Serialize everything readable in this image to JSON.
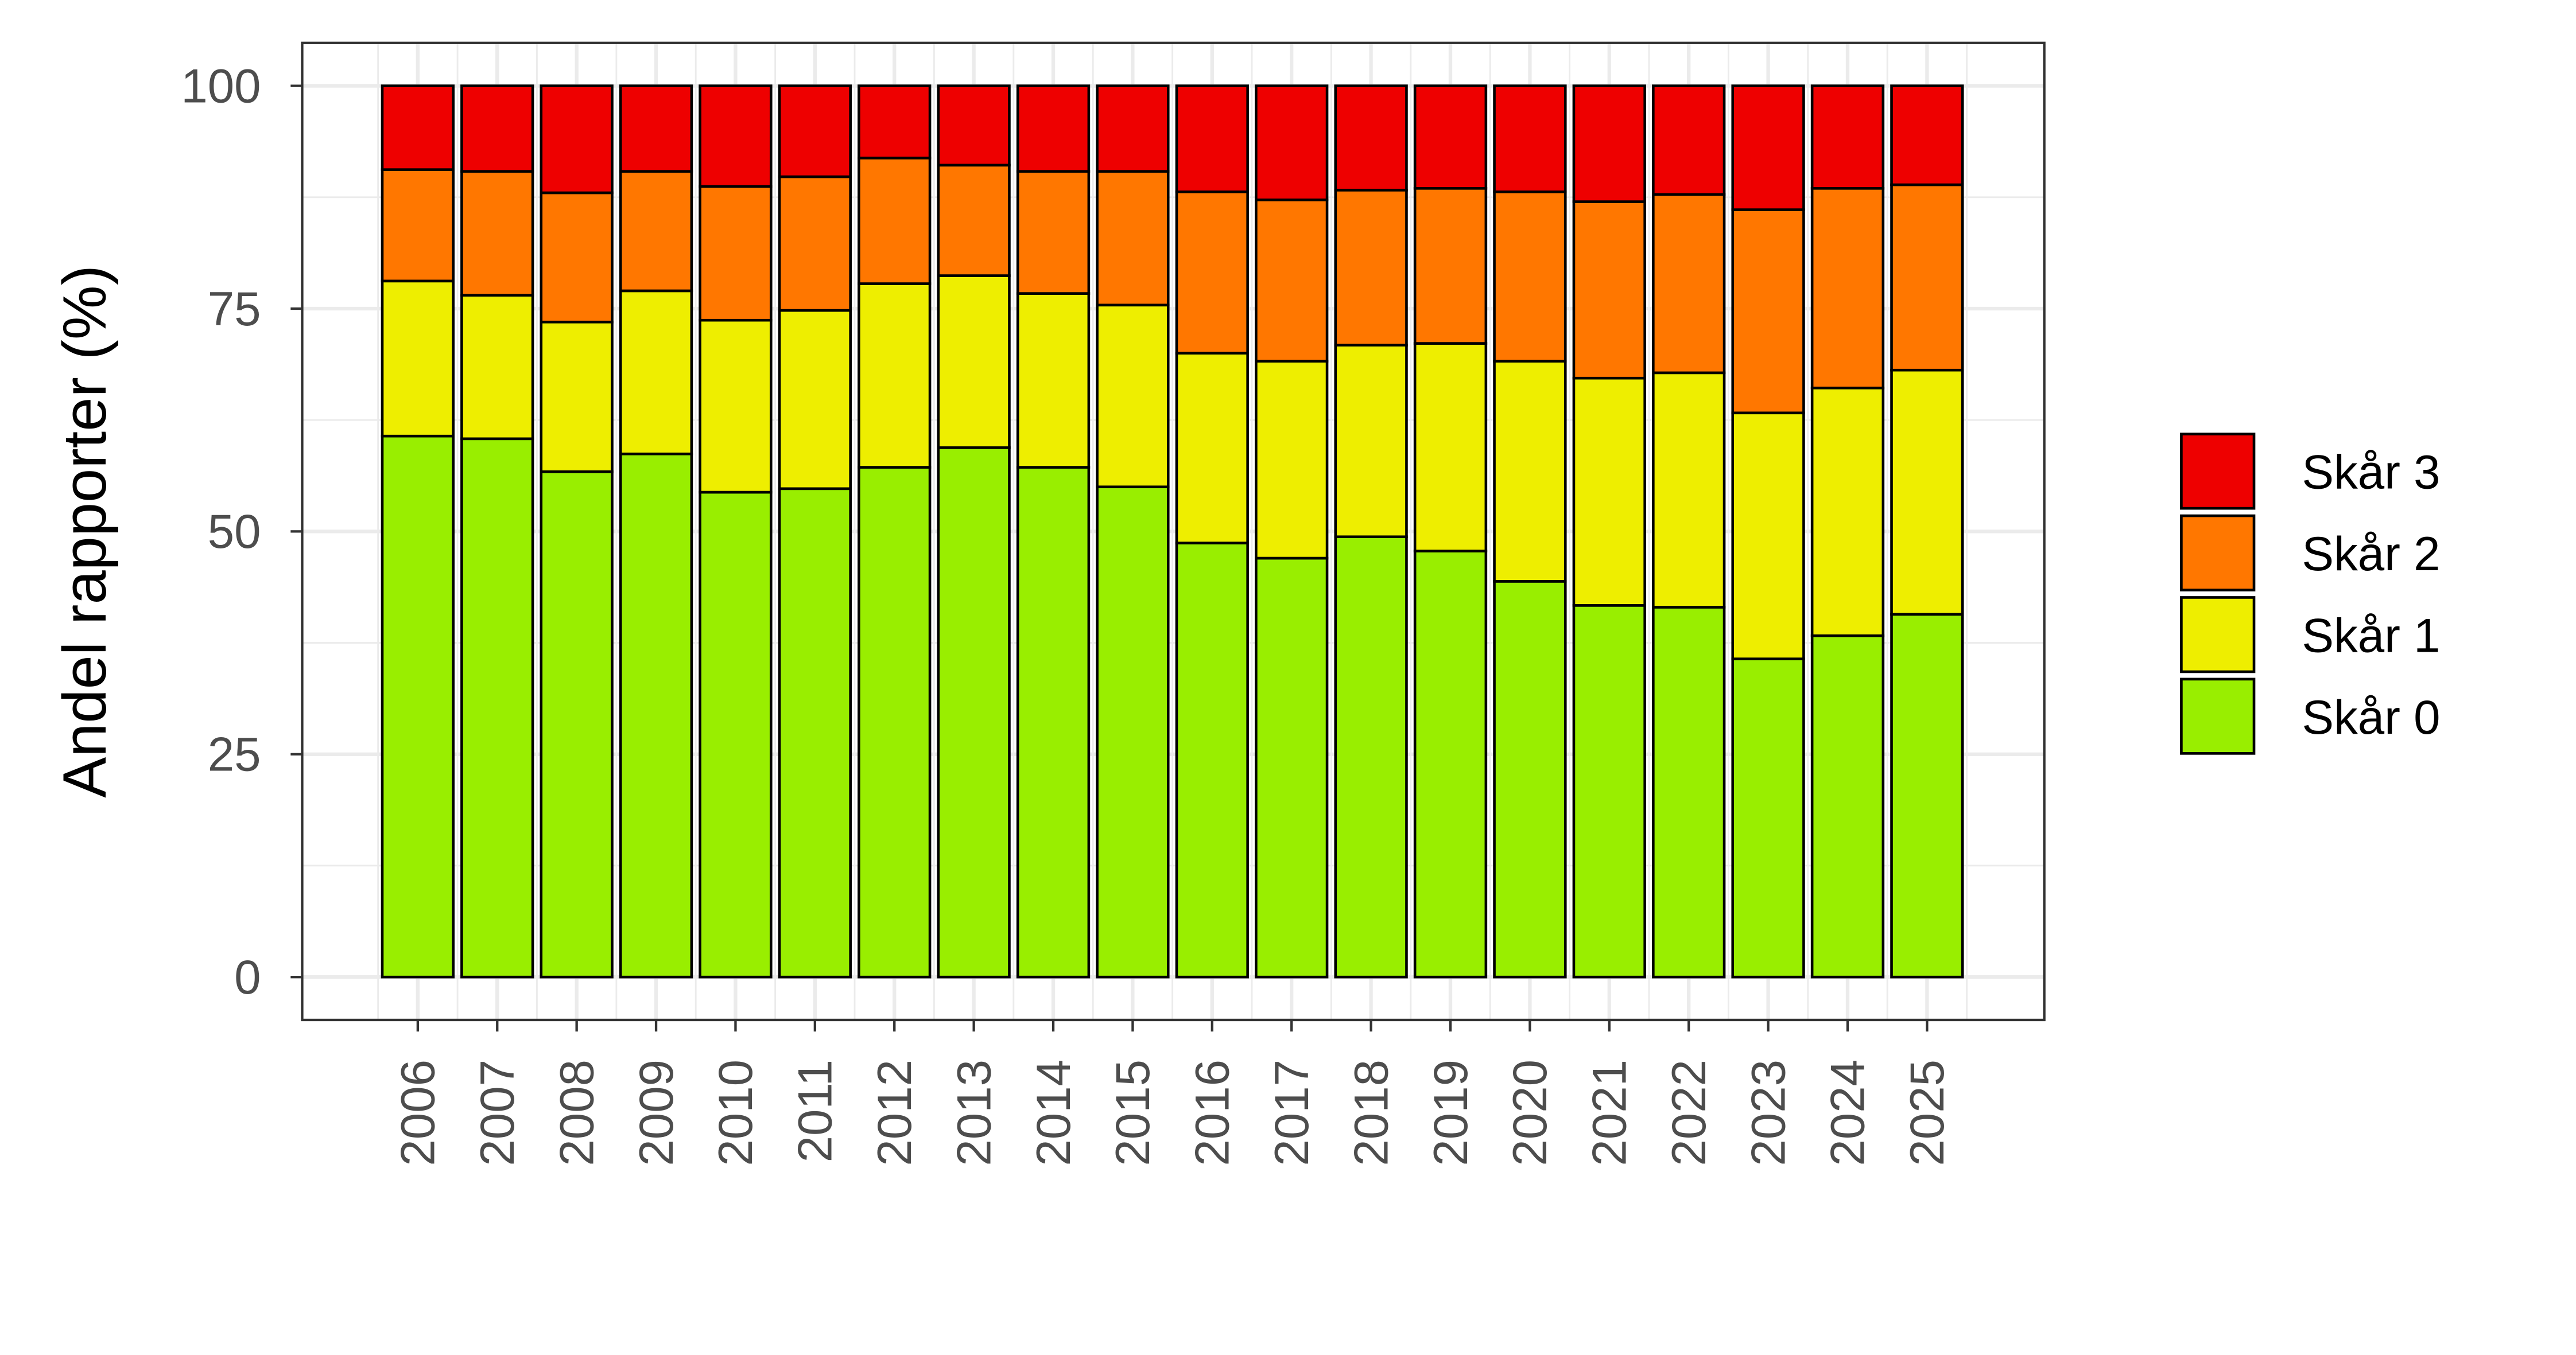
{
  "chart_data": {
    "type": "bar",
    "stacked": true,
    "title": "",
    "xlabel": "",
    "ylabel": "Andel rapporter (%)",
    "ylim": [
      0,
      100
    ],
    "yticks": [
      "0",
      "25",
      "50",
      "75",
      "100"
    ],
    "grid": true,
    "legend_position": "right",
    "categories": [
      "2006",
      "2007",
      "2008",
      "2009",
      "2010",
      "2011",
      "2012",
      "2013",
      "2014",
      "2015",
      "2016",
      "2017",
      "2018",
      "2019",
      "2020",
      "2021",
      "2022",
      "2023",
      "2024",
      "2025"
    ],
    "series": [
      {
        "name": "Skår 0",
        "color": "#99EE00",
        "values": [
          60.7,
          60.4,
          56.7,
          58.7,
          54.4,
          54.8,
          57.2,
          59.4,
          57.2,
          55.0,
          48.7,
          47.0,
          49.4,
          47.8,
          44.4,
          41.7,
          41.5,
          35.7,
          38.3,
          40.7
        ]
      },
      {
        "name": "Skår 1",
        "color": "#EEEE00",
        "values": [
          17.4,
          16.1,
          16.8,
          18.3,
          19.3,
          20.0,
          20.6,
          19.3,
          19.5,
          20.4,
          21.3,
          22.1,
          21.5,
          23.3,
          24.7,
          25.5,
          26.3,
          27.6,
          27.8,
          27.4
        ]
      },
      {
        "name": "Skår 2",
        "color": "#FF7700",
        "values": [
          12.5,
          13.9,
          14.5,
          13.4,
          15.0,
          15.0,
          14.1,
          12.4,
          13.7,
          15.0,
          18.1,
          18.1,
          17.4,
          17.4,
          19.0,
          19.8,
          20.0,
          22.8,
          22.4,
          20.8
        ]
      },
      {
        "name": "Skår 3",
        "color": "#EE0000",
        "values": [
          9.4,
          9.6,
          12.0,
          9.6,
          11.3,
          10.2,
          8.1,
          8.9,
          9.6,
          9.6,
          11.9,
          12.8,
          11.7,
          11.5,
          11.9,
          13.0,
          12.2,
          13.9,
          11.5,
          11.1
        ]
      }
    ],
    "legend_order": [
      "Skår 3",
      "Skår 2",
      "Skår 1",
      "Skår 0"
    ]
  }
}
